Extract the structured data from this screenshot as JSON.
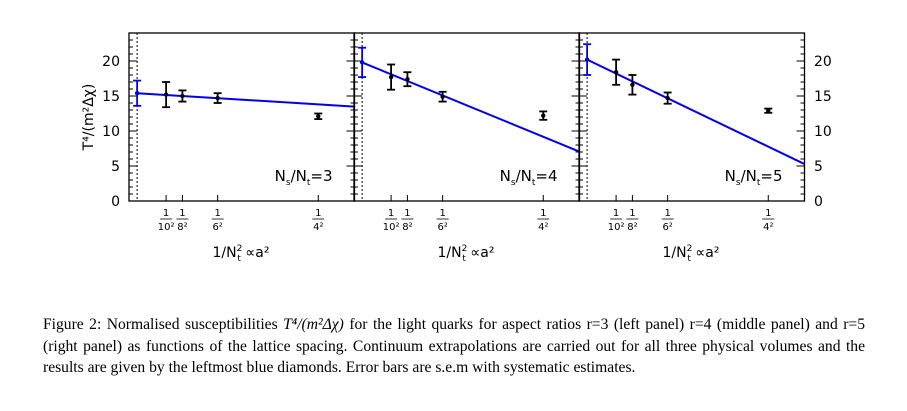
{
  "figure": {
    "ylabel": "T⁴/(m²Δχ)",
    "xlabel_main": "1/N",
    "xlabel_sub": "t",
    "xlabel_sup": "2",
    "xlabel_tail": "∝a²",
    "caption": {
      "label": "Figure 2:",
      "before_math": "Normalised susceptibilities",
      "math": "T⁴/(m²Δχ)",
      "after_math": "for the light quarks for aspect ratios r=3 (left panel) r=4 (middle panel) and r=5 (right panel) as functions of the lattice spacing. Continuum extrapolations are carried out for all three physical volumes and the results are given by the leftmost blue diamonds. Error bars are s.e.m with systematic estimates."
    },
    "colors": {
      "fit": "#0000ee",
      "data": "#000000",
      "axis": "#000000"
    }
  },
  "chart_data": {
    "type": "scatter",
    "ylim": [
      0,
      24
    ],
    "xlim": [
      -0.0028,
      0.075
    ],
    "yticks": [
      0,
      5,
      10,
      15,
      20
    ],
    "ytick_labels": [
      "0",
      "5",
      "10",
      "15",
      "20"
    ],
    "xticks": [
      {
        "value": 0.01,
        "num": "1",
        "den": "10²"
      },
      {
        "value": 0.015625,
        "num": "1",
        "den": "8²"
      },
      {
        "value": 0.027778,
        "num": "1",
        "den": "6²"
      },
      {
        "value": 0.0625,
        "num": "1",
        "den": "4²"
      }
    ],
    "panels": [
      {
        "label_pre": "N",
        "label_sub1": "s",
        "label_mid": "/N",
        "label_sub2": "t",
        "label_post": "=3",
        "continuum": {
          "x": 0,
          "y": 15.4,
          "err": 1.8
        },
        "points": [
          {
            "x": 0.01,
            "y": 15.2,
            "err": 1.8
          },
          {
            "x": 0.015625,
            "y": 15.0,
            "err": 0.8
          },
          {
            "x": 0.027778,
            "y": 14.7,
            "err": 0.7
          },
          {
            "x": 0.0625,
            "y": 12.1,
            "err": 0.4
          }
        ],
        "fit": {
          "intercept": 15.4,
          "slope": -25.5
        }
      },
      {
        "label_pre": "N",
        "label_sub1": "s",
        "label_mid": "/N",
        "label_sub2": "t",
        "label_post": "=4",
        "continuum": {
          "x": 0,
          "y": 19.8,
          "err": 2.1
        },
        "points": [
          {
            "x": 0.01,
            "y": 17.7,
            "err": 1.8
          },
          {
            "x": 0.015625,
            "y": 17.4,
            "err": 1.0
          },
          {
            "x": 0.027778,
            "y": 14.9,
            "err": 0.7
          },
          {
            "x": 0.0625,
            "y": 12.2,
            "err": 0.6
          }
        ],
        "fit": {
          "intercept": 19.8,
          "slope": -170
        }
      },
      {
        "label_pre": "N",
        "label_sub1": "s",
        "label_mid": "/N",
        "label_sub2": "t",
        "label_post": "=5",
        "continuum": {
          "x": 0,
          "y": 20.2,
          "err": 2.2
        },
        "points": [
          {
            "x": 0.01,
            "y": 18.4,
            "err": 1.8
          },
          {
            "x": 0.015625,
            "y": 16.6,
            "err": 1.4
          },
          {
            "x": 0.027778,
            "y": 14.7,
            "err": 0.8
          },
          {
            "x": 0.0625,
            "y": 12.9,
            "err": 0.3
          }
        ],
        "fit": {
          "intercept": 20.2,
          "slope": -199
        }
      }
    ]
  }
}
